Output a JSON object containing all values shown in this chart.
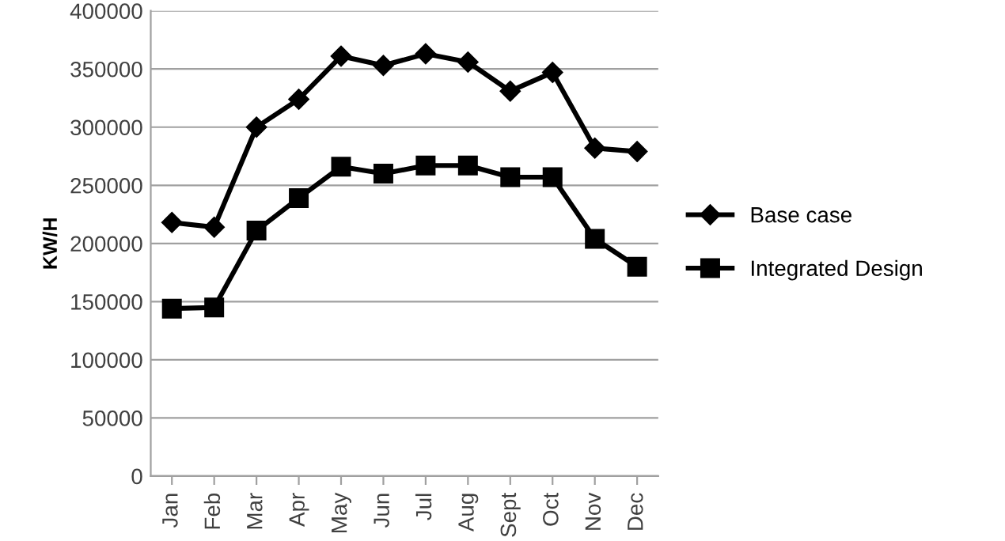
{
  "chart_data": {
    "type": "line",
    "ylabel": "KW/H",
    "categories": [
      "Jan",
      "Feb",
      "Mar",
      "Apr",
      "May",
      "Jun",
      "Jul",
      "Aug",
      "Sept",
      "Oct",
      "Nov",
      "Dec"
    ],
    "series": [
      {
        "name": "Base case",
        "color": "#000000",
        "marker": "diamond",
        "values": [
          218000,
          214000,
          300000,
          324000,
          361000,
          353000,
          363000,
          356000,
          331000,
          347000,
          282000,
          279000
        ]
      },
      {
        "name": "Integrated Design",
        "color": "#000000",
        "marker": "square",
        "values": [
          144000,
          145000,
          211000,
          239000,
          266000,
          260000,
          267000,
          267000,
          257000,
          257000,
          204000,
          180000
        ]
      }
    ],
    "ylim": [
      0,
      400000
    ],
    "yticks": [
      0,
      50000,
      100000,
      150000,
      200000,
      250000,
      300000,
      350000,
      400000
    ],
    "grid": "y",
    "legend": "right",
    "line_style": "solid"
  }
}
